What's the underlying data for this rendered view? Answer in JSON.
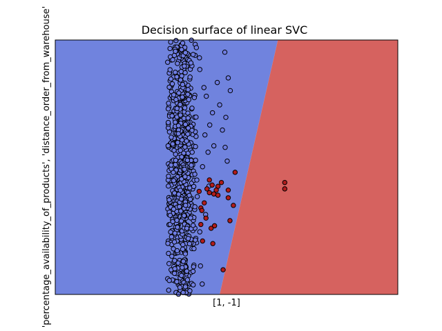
{
  "chart_data": {
    "type": "scatter",
    "title": "Decision surface of linear SVC",
    "xlabel": "[1, -1]",
    "ylabel": "'percentage_availability_of_products', 'distance_order_from_warehouse'",
    "xlim": [
      0,
      100
    ],
    "ylim": [
      0,
      100
    ],
    "grid": false,
    "legend": "none",
    "regions": [
      {
        "name": "class -1",
        "color": "#7083de"
      },
      {
        "name": "class 1",
        "color": "#d6625f"
      }
    ],
    "boundary": {
      "top": [
        65,
        100
      ],
      "bottom": [
        48,
        0
      ]
    },
    "cluster": {
      "count": 720,
      "x_range": [
        32.8,
        42.5
      ],
      "y_range": [
        0,
        100
      ],
      "density_center_x": 36.5
    },
    "series": [
      {
        "color": "#6f7de3",
        "points": [
          [
            49.5,
            95.2
          ],
          [
            47.3,
            83.3
          ],
          [
            50.5,
            85.1
          ],
          [
            51.1,
            80.1
          ],
          [
            48.0,
            74.5
          ],
          [
            49.8,
            69.6
          ],
          [
            48.8,
            64.6
          ],
          [
            49.6,
            57.8
          ],
          [
            50.2,
            52.4
          ],
          [
            46.3,
            58.4
          ],
          [
            45.1,
            66.6
          ],
          [
            45.9,
            71.4
          ],
          [
            44.1,
            77.9
          ],
          [
            43.4,
            81.3
          ],
          [
            42.2,
            88.4
          ],
          [
            42.1,
            93.0
          ],
          [
            43.0,
            50.2
          ],
          [
            44.6,
            55.9
          ],
          [
            43.7,
            62.7
          ],
          [
            41.2,
            97.0
          ],
          [
            44.9,
            42.6
          ],
          [
            43.9,
            31.4
          ],
          [
            42.2,
            24.6
          ],
          [
            42.4,
            11.2
          ],
          [
            42.9,
            4.1
          ],
          [
            40.5,
            18.0
          ],
          [
            33.3,
            5.5
          ],
          [
            37.2,
            98.8
          ],
          [
            38.0,
            95.0
          ],
          [
            39.6,
            91.0
          ]
        ]
      },
      {
        "color": "#b01c1c",
        "points": [
          [
            67.0,
            44.0
          ],
          [
            67.0,
            41.5
          ],
          [
            50.5,
            41.0
          ],
          [
            52.5,
            48.0
          ],
          [
            52.0,
            35.0
          ],
          [
            47.5,
            42.5
          ],
          [
            46.3,
            39.5
          ],
          [
            45.0,
            40.0
          ],
          [
            43.5,
            36.0
          ],
          [
            42.5,
            34.0
          ],
          [
            44.0,
            30.0
          ],
          [
            45.5,
            26.0
          ],
          [
            46.0,
            20.0
          ],
          [
            42.5,
            27.5
          ],
          [
            43.0,
            21.0
          ],
          [
            50.5,
            38.0
          ],
          [
            48.5,
            44.0
          ],
          [
            51.0,
            29.0
          ],
          [
            44.3,
            41.5
          ],
          [
            45.0,
            45.0
          ],
          [
            49.0,
            9.7
          ],
          [
            47.0,
            41.0
          ],
          [
            45.8,
            43.0
          ],
          [
            42.0,
            40.5
          ],
          [
            47.5,
            39.0
          ],
          [
            46.5,
            27.0
          ],
          [
            42.8,
            33.0
          ]
        ]
      }
    ]
  }
}
